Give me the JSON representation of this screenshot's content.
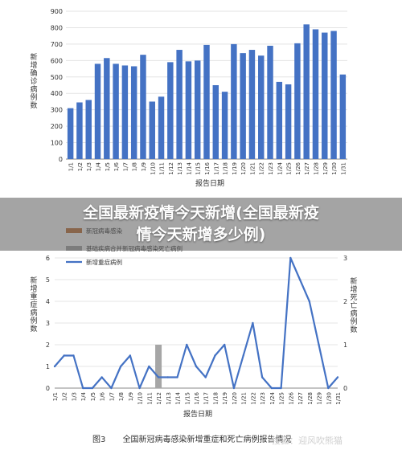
{
  "banner": {
    "line1": "全国最新疫情今天新增(全国最新疫",
    "line2": "情今天新增多少例)"
  },
  "caption": {
    "figure": "图3",
    "text": "全国新冠病毒感染新增重症和死亡病例报告情况"
  },
  "watermark": "搜狐：迎风吹熊猫",
  "colors": {
    "bar": "#4472c4",
    "line": "#4472c4",
    "gray": "#a6a6a6",
    "brown": "#c0733a"
  },
  "chart_data": [
    {
      "type": "bar",
      "ylabel": "新增确诊病例数",
      "xlabel": "报告日期",
      "ylim": [
        0,
        900
      ],
      "yticks": [
        0,
        100,
        200,
        300,
        400,
        500,
        600,
        700,
        800,
        900
      ],
      "grid": true,
      "categories": [
        "1/1",
        "1/2",
        "1/3",
        "1/4",
        "1/5",
        "1/6",
        "1/7",
        "1/8",
        "1/9",
        "1/10",
        "1/11",
        "1/12",
        "1/13",
        "1/14",
        "1/15",
        "1/16",
        "1/17",
        "1/18",
        "1/19",
        "1/20",
        "1/21",
        "1/22",
        "1/23",
        "1/24",
        "1/25",
        "1/26",
        "1/27",
        "1/28",
        "1/29",
        "1/30",
        "1/31"
      ],
      "values": [
        310,
        345,
        360,
        580,
        615,
        580,
        570,
        565,
        635,
        350,
        380,
        590,
        665,
        595,
        600,
        695,
        450,
        410,
        700,
        645,
        665,
        630,
        690,
        470,
        455,
        705,
        820,
        790,
        770,
        780,
        515
      ]
    },
    {
      "type": "line",
      "ylabel": "新增重症病例数",
      "y2label": "新增死亡病例数",
      "xlabel": "报告日期",
      "ylim": [
        0,
        6
      ],
      "y2lim": [
        0,
        3
      ],
      "yticks": [
        0,
        1,
        2,
        3,
        4,
        5,
        6
      ],
      "y2ticks": [
        0,
        1,
        2,
        3
      ],
      "grid": true,
      "legend_position": "top-left",
      "categories": [
        "1/1",
        "1/2",
        "1/3",
        "1/4",
        "1/5",
        "1/6",
        "1/7",
        "1/8",
        "1/9",
        "1/10",
        "1/11",
        "1/12",
        "1/13",
        "1/14",
        "1/15",
        "1/16",
        "1/17",
        "1/18",
        "1/19",
        "1/20",
        "1/21",
        "1/22",
        "1/23",
        "1/24",
        "1/25",
        "1/26",
        "1/27",
        "1/28",
        "1/29",
        "1/30",
        "1/31"
      ],
      "series": [
        {
          "name": "新冠病毒感染",
          "kind": "bar",
          "axis": "right",
          "values": [
            0,
            0,
            0,
            0,
            0,
            0,
            0,
            0,
            0,
            0,
            0,
            0,
            0,
            0,
            0,
            0,
            0,
            0,
            0,
            0,
            0,
            0,
            0,
            0,
            0,
            0,
            0,
            0,
            0,
            0,
            0
          ]
        },
        {
          "name": "基础疾病合并新冠病毒感染死亡病例",
          "kind": "bar",
          "axis": "right",
          "values": [
            0,
            0,
            0,
            0,
            0,
            0,
            0,
            0,
            0,
            0,
            0,
            1,
            0,
            0,
            0,
            0,
            0,
            0,
            0,
            0,
            0,
            0,
            0,
            0,
            0,
            0,
            0,
            0,
            0,
            0,
            0
          ]
        },
        {
          "name": "新增重症病例",
          "kind": "line",
          "axis": "left",
          "values": [
            1,
            1.5,
            1.5,
            0,
            0,
            0.5,
            0,
            1,
            1.5,
            0,
            1,
            0.5,
            0.5,
            0.5,
            2,
            1,
            0.5,
            1.5,
            2,
            0,
            1.5,
            3,
            0.5,
            0,
            0,
            6,
            5,
            4,
            2,
            0,
            0.5
          ]
        }
      ]
    }
  ]
}
